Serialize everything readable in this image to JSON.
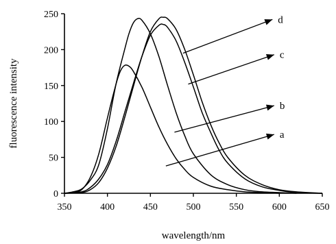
{
  "chart_data": {
    "type": "line",
    "xlabel": "wavelength/nm",
    "ylabel": "fluorescence intensity",
    "xlim": [
      350,
      650
    ],
    "ylim": [
      0,
      250
    ],
    "x_ticks": [
      350,
      400,
      450,
      500,
      550,
      600,
      650
    ],
    "y_ticks": [
      0,
      50,
      100,
      150,
      200,
      250
    ],
    "grid": false,
    "series": [
      {
        "name": "a",
        "points": [
          [
            350,
            0
          ],
          [
            360,
            1
          ],
          [
            370,
            5
          ],
          [
            380,
            22
          ],
          [
            390,
            55
          ],
          [
            400,
            105
          ],
          [
            410,
            152
          ],
          [
            415,
            170
          ],
          [
            420,
            178
          ],
          [
            425,
            177
          ],
          [
            430,
            170
          ],
          [
            440,
            148
          ],
          [
            450,
            120
          ],
          [
            460,
            92
          ],
          [
            470,
            68
          ],
          [
            480,
            48
          ],
          [
            490,
            33
          ],
          [
            500,
            22
          ],
          [
            520,
            10
          ],
          [
            540,
            5
          ],
          [
            560,
            2
          ],
          [
            580,
            1
          ],
          [
            600,
            0
          ]
        ]
      },
      {
        "name": "b",
        "points": [
          [
            350,
            0
          ],
          [
            360,
            2
          ],
          [
            370,
            6
          ],
          [
            380,
            18
          ],
          [
            390,
            40
          ],
          [
            400,
            90
          ],
          [
            410,
            152
          ],
          [
            420,
            200
          ],
          [
            425,
            222
          ],
          [
            430,
            237
          ],
          [
            435,
            243
          ],
          [
            440,
            241
          ],
          [
            450,
            222
          ],
          [
            460,
            190
          ],
          [
            470,
            150
          ],
          [
            480,
            112
          ],
          [
            490,
            80
          ],
          [
            500,
            55
          ],
          [
            520,
            26
          ],
          [
            540,
            12
          ],
          [
            560,
            5
          ],
          [
            580,
            2
          ],
          [
            600,
            1
          ],
          [
            620,
            0
          ]
        ]
      },
      {
        "name": "c",
        "points": [
          [
            350,
            0
          ],
          [
            370,
            2
          ],
          [
            380,
            8
          ],
          [
            390,
            20
          ],
          [
            400,
            40
          ],
          [
            410,
            72
          ],
          [
            420,
            112
          ],
          [
            430,
            152
          ],
          [
            440,
            190
          ],
          [
            450,
            220
          ],
          [
            460,
            234
          ],
          [
            465,
            235
          ],
          [
            470,
            231
          ],
          [
            480,
            212
          ],
          [
            490,
            182
          ],
          [
            500,
            148
          ],
          [
            510,
            113
          ],
          [
            520,
            85
          ],
          [
            530,
            60
          ],
          [
            540,
            42
          ],
          [
            560,
            20
          ],
          [
            580,
            9
          ],
          [
            600,
            4
          ],
          [
            620,
            1
          ],
          [
            650,
            0
          ]
        ]
      },
      {
        "name": "d",
        "points": [
          [
            350,
            0
          ],
          [
            370,
            1
          ],
          [
            380,
            5
          ],
          [
            390,
            15
          ],
          [
            400,
            35
          ],
          [
            410,
            65
          ],
          [
            420,
            105
          ],
          [
            430,
            148
          ],
          [
            440,
            190
          ],
          [
            450,
            225
          ],
          [
            460,
            243
          ],
          [
            465,
            245
          ],
          [
            470,
            243
          ],
          [
            480,
            228
          ],
          [
            490,
            200
          ],
          [
            500,
            165
          ],
          [
            510,
            128
          ],
          [
            520,
            96
          ],
          [
            530,
            70
          ],
          [
            540,
            50
          ],
          [
            560,
            25
          ],
          [
            580,
            12
          ],
          [
            600,
            5
          ],
          [
            620,
            2
          ],
          [
            650,
            0
          ]
        ]
      }
    ],
    "annotations": [
      {
        "label": "d",
        "from": [
          488,
          195
        ],
        "to": [
          592,
          242
        ]
      },
      {
        "label": "c",
        "from": [
          494,
          152
        ],
        "to": [
          594,
          193
        ]
      },
      {
        "label": "b",
        "from": [
          478,
          85
        ],
        "to": [
          594,
          122
        ]
      },
      {
        "label": "a",
        "from": [
          468,
          38
        ],
        "to": [
          594,
          82
        ]
      }
    ]
  }
}
